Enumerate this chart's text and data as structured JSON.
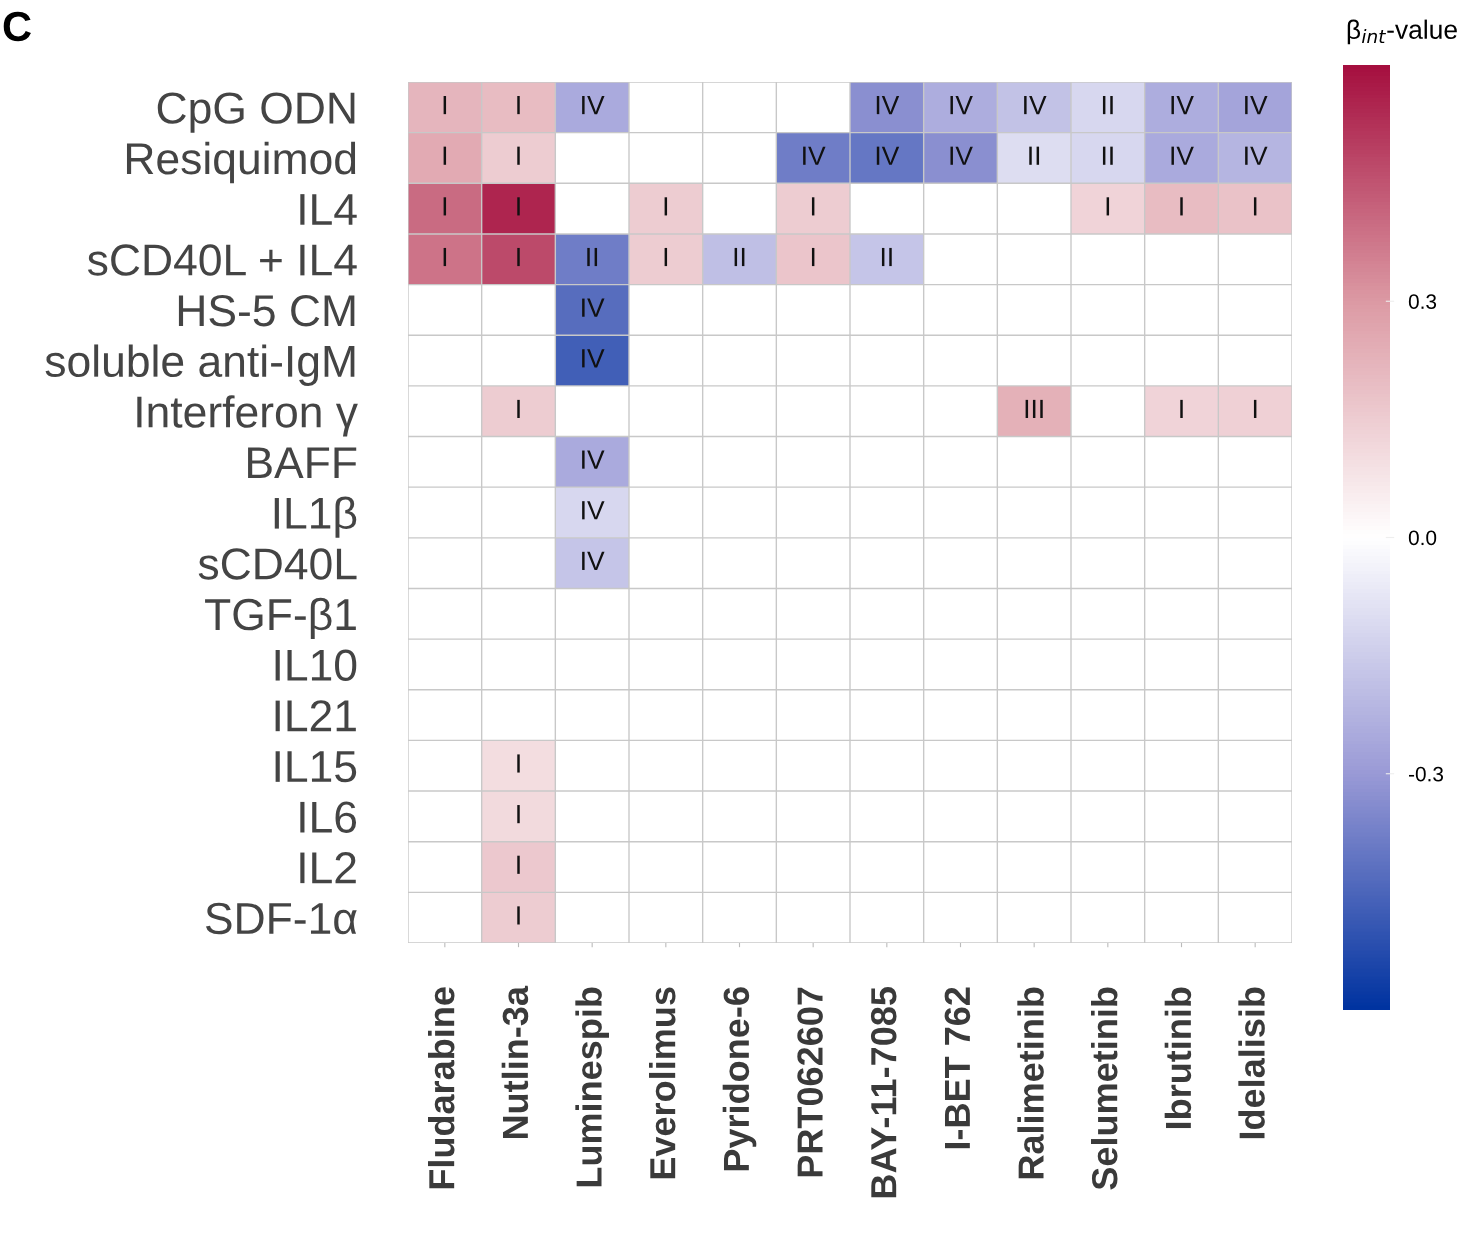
{
  "chart_data": {
    "type": "heatmap",
    "categories": [
      "Fludarabine",
      "Nutlin-3a",
      "Luminespib",
      "Everolimus",
      "Pyridone-6",
      "PRT062607",
      "BAY-11-7085",
      "I-BET 762",
      "Ralimetinib",
      "Selumetinib",
      "Ibrutinib",
      "Idelalisib"
    ],
    "y_categories": [
      "CpG ODN",
      "Resiquimod",
      "IL4",
      "sCD40L + IL4",
      "HS-5 CM",
      "soluble anti-IgM",
      "Interferon γ",
      "BAFF",
      "IL1β",
      "sCD40L",
      "TGF-β1",
      "IL10",
      "IL21",
      "IL15",
      "IL6",
      "IL2",
      "SDF-1α"
    ],
    "cells": [
      [
        0.22,
        0.2,
        -0.25,
        null,
        null,
        null,
        -0.33,
        -0.24,
        -0.18,
        -0.12,
        -0.24,
        -0.27
      ],
      [
        0.25,
        0.15,
        null,
        null,
        null,
        -0.38,
        -0.4,
        -0.33,
        -0.1,
        -0.12,
        -0.25,
        -0.22
      ],
      [
        0.4,
        0.55,
        null,
        0.15,
        null,
        0.15,
        null,
        null,
        null,
        0.13,
        0.2,
        0.18
      ],
      [
        0.38,
        0.47,
        -0.38,
        0.15,
        -0.19,
        0.17,
        -0.17,
        null,
        null,
        null,
        null,
        null
      ],
      [
        null,
        null,
        -0.43,
        null,
        null,
        null,
        null,
        null,
        null,
        null,
        null,
        null
      ],
      [
        null,
        null,
        -0.47,
        null,
        null,
        null,
        null,
        null,
        null,
        null,
        null,
        null
      ],
      [
        null,
        0.15,
        null,
        null,
        null,
        null,
        null,
        null,
        0.23,
        null,
        0.13,
        0.14
      ],
      [
        null,
        null,
        -0.25,
        null,
        null,
        null,
        null,
        null,
        null,
        null,
        null,
        null
      ],
      [
        null,
        null,
        -0.12,
        null,
        null,
        null,
        null,
        null,
        null,
        null,
        null,
        null
      ],
      [
        null,
        null,
        -0.17,
        null,
        null,
        null,
        null,
        null,
        null,
        null,
        null,
        null
      ],
      [
        null,
        null,
        null,
        null,
        null,
        null,
        null,
        null,
        null,
        null,
        null,
        null
      ],
      [
        null,
        null,
        null,
        null,
        null,
        null,
        null,
        null,
        null,
        null,
        null,
        null
      ],
      [
        null,
        null,
        null,
        null,
        null,
        null,
        null,
        null,
        null,
        null,
        null,
        null
      ],
      [
        null,
        0.1,
        null,
        null,
        null,
        null,
        null,
        null,
        null,
        null,
        null,
        null
      ],
      [
        null,
        0.11,
        null,
        null,
        null,
        null,
        null,
        null,
        null,
        null,
        null,
        null
      ],
      [
        null,
        0.16,
        null,
        null,
        null,
        null,
        null,
        null,
        null,
        null,
        null,
        null
      ],
      [
        null,
        0.15,
        null,
        null,
        null,
        null,
        null,
        null,
        null,
        null,
        null,
        null
      ]
    ],
    "cell_labels": [
      [
        "I",
        "I",
        "IV",
        null,
        null,
        null,
        "IV",
        "IV",
        "IV",
        "II",
        "IV",
        "IV"
      ],
      [
        "I",
        "I",
        null,
        null,
        null,
        "IV",
        "IV",
        "IV",
        "II",
        "II",
        "IV",
        "IV"
      ],
      [
        "I",
        "I",
        null,
        "I",
        null,
        "I",
        null,
        null,
        null,
        "I",
        "I",
        "I"
      ],
      [
        "I",
        "I",
        "II",
        "I",
        "II",
        "I",
        "II",
        null,
        null,
        null,
        null,
        null
      ],
      [
        null,
        null,
        "IV",
        null,
        null,
        null,
        null,
        null,
        null,
        null,
        null,
        null
      ],
      [
        null,
        null,
        "IV",
        null,
        null,
        null,
        null,
        null,
        null,
        null,
        null,
        null
      ],
      [
        null,
        "I",
        null,
        null,
        null,
        null,
        null,
        null,
        "III",
        null,
        "I",
        "I"
      ],
      [
        null,
        null,
        "IV",
        null,
        null,
        null,
        null,
        null,
        null,
        null,
        null,
        null
      ],
      [
        null,
        null,
        "IV",
        null,
        null,
        null,
        null,
        null,
        null,
        null,
        null,
        null
      ],
      [
        null,
        null,
        "IV",
        null,
        null,
        null,
        null,
        null,
        null,
        null,
        null,
        null
      ],
      [
        null,
        null,
        null,
        null,
        null,
        null,
        null,
        null,
        null,
        null,
        null,
        null
      ],
      [
        null,
        null,
        null,
        null,
        null,
        null,
        null,
        null,
        null,
        null,
        null,
        null
      ],
      [
        null,
        null,
        null,
        null,
        null,
        null,
        null,
        null,
        null,
        null,
        null,
        null
      ],
      [
        null,
        "I",
        null,
        null,
        null,
        null,
        null,
        null,
        null,
        null,
        null,
        null
      ],
      [
        null,
        "I",
        null,
        null,
        null,
        null,
        null,
        null,
        null,
        null,
        null,
        null
      ],
      [
        null,
        "I",
        null,
        null,
        null,
        null,
        null,
        null,
        null,
        null,
        null,
        null
      ],
      [
        null,
        "I",
        null,
        null,
        null,
        null,
        null,
        null,
        null,
        null,
        null,
        null
      ]
    ],
    "clim": [
      -0.6,
      0.6
    ],
    "cticks": [
      -0.3,
      {
        "value": 0,
        "label": "0.0"
      },
      0.3
    ],
    "clabel": "β$_{int}$-value",
    "grid": true,
    "annotations": [
      "C"
    ]
  }
}
